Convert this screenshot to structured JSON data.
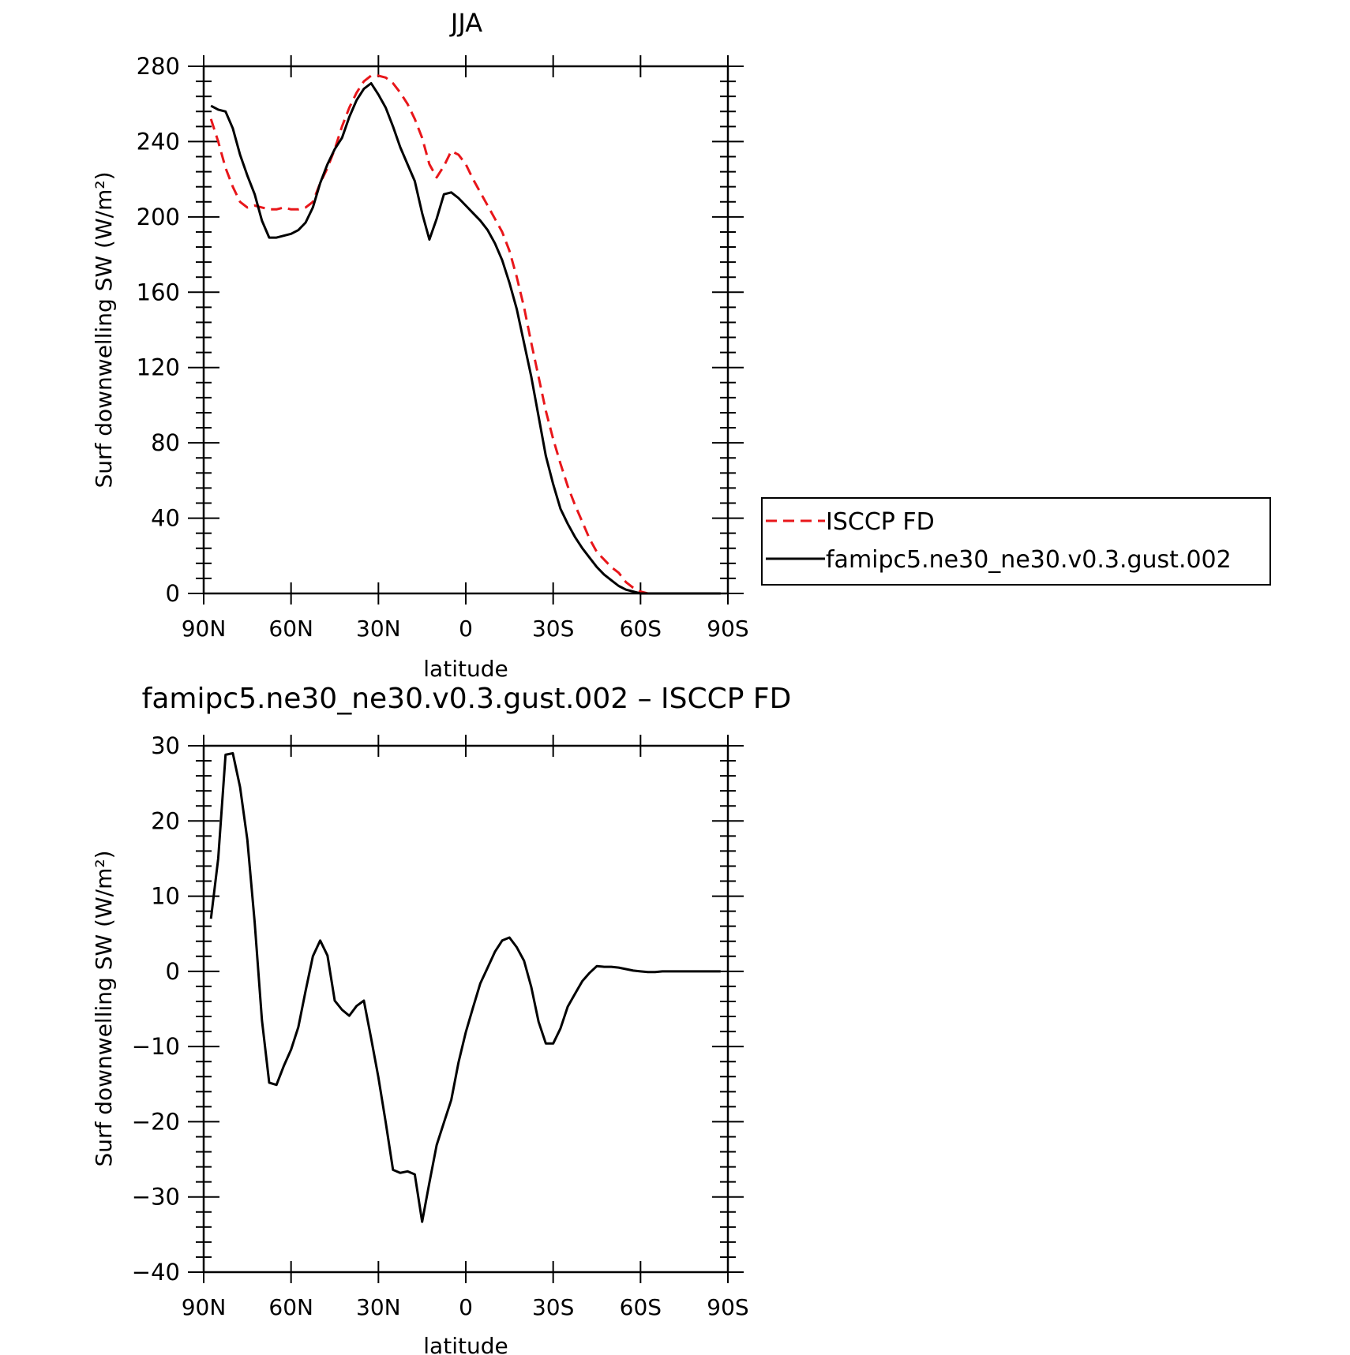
{
  "chart_data": [
    {
      "type": "line",
      "title": "JJA",
      "xlabel": "latitude",
      "ylabel": "Surf downwelling SW (W/m²)",
      "xlim": [
        90,
        -90
      ],
      "ylim": [
        0,
        280
      ],
      "x_ticks": [
        {
          "value": 90,
          "label": "90N"
        },
        {
          "value": 60,
          "label": "60N"
        },
        {
          "value": 30,
          "label": "30N"
        },
        {
          "value": 0,
          "label": "0"
        },
        {
          "value": -30,
          "label": "30S"
        },
        {
          "value": -60,
          "label": "60S"
        },
        {
          "value": -90,
          "label": "90S"
        }
      ],
      "y_ticks": [
        0,
        40,
        80,
        120,
        160,
        200,
        240,
        280
      ],
      "legend": {
        "placement": "right",
        "entries": [
          "ISCCP FD",
          "famipc5.ne30_ne30.v0.3.gust.002"
        ]
      },
      "series": [
        {
          "name": "ISCCP FD",
          "color": "#e8161a",
          "dash": true,
          "x": [
            87.5,
            85,
            82.5,
            80,
            77.5,
            75,
            72.5,
            70,
            67.5,
            65,
            62.5,
            60,
            57.5,
            55,
            52.5,
            50,
            47.5,
            45,
            42.5,
            40,
            37.5,
            35,
            32.5,
            30,
            27.5,
            25,
            22.5,
            20,
            17.5,
            15,
            12.5,
            10,
            7.5,
            5,
            2.5,
            0,
            -2.5,
            -5,
            -7.5,
            -10,
            -12.5,
            -15,
            -17.5,
            -20,
            -22.5,
            -25,
            -27.5,
            -30,
            -32.5,
            -35,
            -37.5,
            -40,
            -42.5,
            -45,
            -47.5,
            -50,
            -52.5,
            -55,
            -57.5,
            -60,
            -62.5,
            -65,
            -67.5,
            -70,
            -72.5,
            -75,
            -77.5,
            -80,
            -82.5,
            -85,
            -87.5
          ],
          "y": [
            252,
            240,
            226,
            216,
            208,
            205,
            206,
            205,
            204,
            204,
            205,
            204,
            204,
            205,
            208,
            218,
            226,
            236,
            248,
            258,
            266,
            272,
            275,
            275,
            274,
            271,
            266,
            260,
            252,
            242,
            228,
            221,
            227,
            235,
            233,
            228,
            220,
            213,
            206,
            199,
            192,
            182,
            168,
            152,
            133,
            115,
            97,
            82,
            69,
            57,
            47,
            38,
            29,
            22,
            18,
            14,
            11,
            6,
            3,
            1,
            0,
            0,
            0,
            0,
            0,
            0,
            0,
            0,
            0,
            0,
            0
          ]
        },
        {
          "name": "famipc5.ne30_ne30.v0.3.gust.002",
          "color": "#000000",
          "dash": false,
          "x": [
            87.5,
            85,
            82.5,
            80,
            77.5,
            75,
            72.5,
            70,
            67.5,
            65,
            62.5,
            60,
            57.5,
            55,
            52.5,
            50,
            47.5,
            45,
            42.5,
            40,
            37.5,
            35,
            32.5,
            30,
            27.5,
            25,
            22.5,
            20,
            17.5,
            15,
            12.5,
            10,
            7.5,
            5,
            2.5,
            0,
            -2.5,
            -5,
            -7.5,
            -10,
            -12.5,
            -15,
            -17.5,
            -20,
            -22.5,
            -25,
            -27.5,
            -30,
            -32.5,
            -35,
            -37.5,
            -40,
            -42.5,
            -45,
            -47.5,
            -50,
            -52.5,
            -55,
            -57.5,
            -60,
            -62.5,
            -65,
            -67.5,
            -70,
            -72.5,
            -75,
            -77.5,
            -80,
            -82.5,
            -85,
            -87.5
          ],
          "y": [
            259,
            257,
            256,
            247,
            233,
            222,
            212,
            198,
            189,
            189,
            190,
            191,
            193,
            197,
            205,
            218,
            228,
            236,
            242,
            253,
            262,
            268,
            271,
            265,
            258,
            248,
            237,
            228,
            219,
            202,
            188,
            199,
            212,
            213,
            210,
            206,
            202,
            198,
            193,
            186,
            177,
            165,
            151,
            133,
            115,
            94,
            73,
            58,
            45,
            37,
            30,
            24,
            19,
            14,
            10,
            7,
            4,
            2,
            1,
            0,
            0,
            0,
            0,
            0,
            0,
            0,
            0,
            0,
            0,
            0,
            0
          ]
        }
      ]
    },
    {
      "type": "line",
      "title": "famipc5.ne30_ne30.v0.3.gust.002 – ISCCP FD",
      "xlabel": "latitude",
      "ylabel": "Surf downwelling SW (W/m²)",
      "xlim": [
        90,
        -90
      ],
      "ylim": [
        -40,
        30
      ],
      "x_ticks": [
        {
          "value": 90,
          "label": "90N"
        },
        {
          "value": 60,
          "label": "60N"
        },
        {
          "value": 30,
          "label": "30N"
        },
        {
          "value": 0,
          "label": "0"
        },
        {
          "value": -30,
          "label": "30S"
        },
        {
          "value": -60,
          "label": "60S"
        },
        {
          "value": -90,
          "label": "90S"
        }
      ],
      "y_ticks": [
        -40,
        -30,
        -20,
        -10,
        0,
        10,
        20,
        30
      ],
      "series": [
        {
          "color": "#000000",
          "dash": false,
          "x": [
            87.5,
            85,
            82.5,
            80,
            77.5,
            75,
            72.5,
            70,
            67.5,
            65,
            62.5,
            60,
            57.5,
            55,
            52.5,
            50,
            47.5,
            45,
            42.5,
            40,
            37.5,
            35,
            32.5,
            30,
            27.5,
            25,
            22.5,
            20,
            17.5,
            15,
            12.5,
            10,
            7.5,
            5,
            2.5,
            0,
            -2.5,
            -5,
            -7.5,
            -10,
            -12.5,
            -15,
            -17.5,
            -20,
            -22.5,
            -25,
            -27.5,
            -30,
            -32.5,
            -35,
            -37.5,
            -40,
            -42.5,
            -45,
            -47.5,
            -50,
            -52.5,
            -55,
            -57.5,
            -60,
            -62.5,
            -65,
            -67.5,
            -70,
            -72.5,
            -75,
            -77.5,
            -80,
            -82.5,
            -85,
            -87.5
          ],
          "y": [
            7,
            15,
            28.8,
            29,
            24.5,
            17.5,
            6.5,
            -6.5,
            -14.8,
            -15.1,
            -12.6,
            -10.4,
            -7.4,
            -2.6,
            2,
            4.1,
            2.1,
            -3.9,
            -5.1,
            -5.9,
            -4.6,
            -3.9,
            -8.9,
            -14.1,
            -20.1,
            -26.4,
            -26.8,
            -26.6,
            -27,
            -33.3,
            -28.1,
            -23.1,
            -20.1,
            -17.1,
            -12.1,
            -8.1,
            -4.8,
            -1.6,
            0.5,
            2.6,
            4.1,
            4.5,
            3.2,
            1.4,
            -2.1,
            -6.7,
            -9.6,
            -9.6,
            -7.6,
            -4.7,
            -3,
            -1.3,
            -0.2,
            0.7,
            0.6,
            0.6,
            0.5,
            0.3,
            0.1,
            0,
            -0.1,
            -0.1,
            0,
            0,
            0,
            0,
            0,
            0,
            0,
            0,
            0
          ]
        }
      ]
    }
  ]
}
